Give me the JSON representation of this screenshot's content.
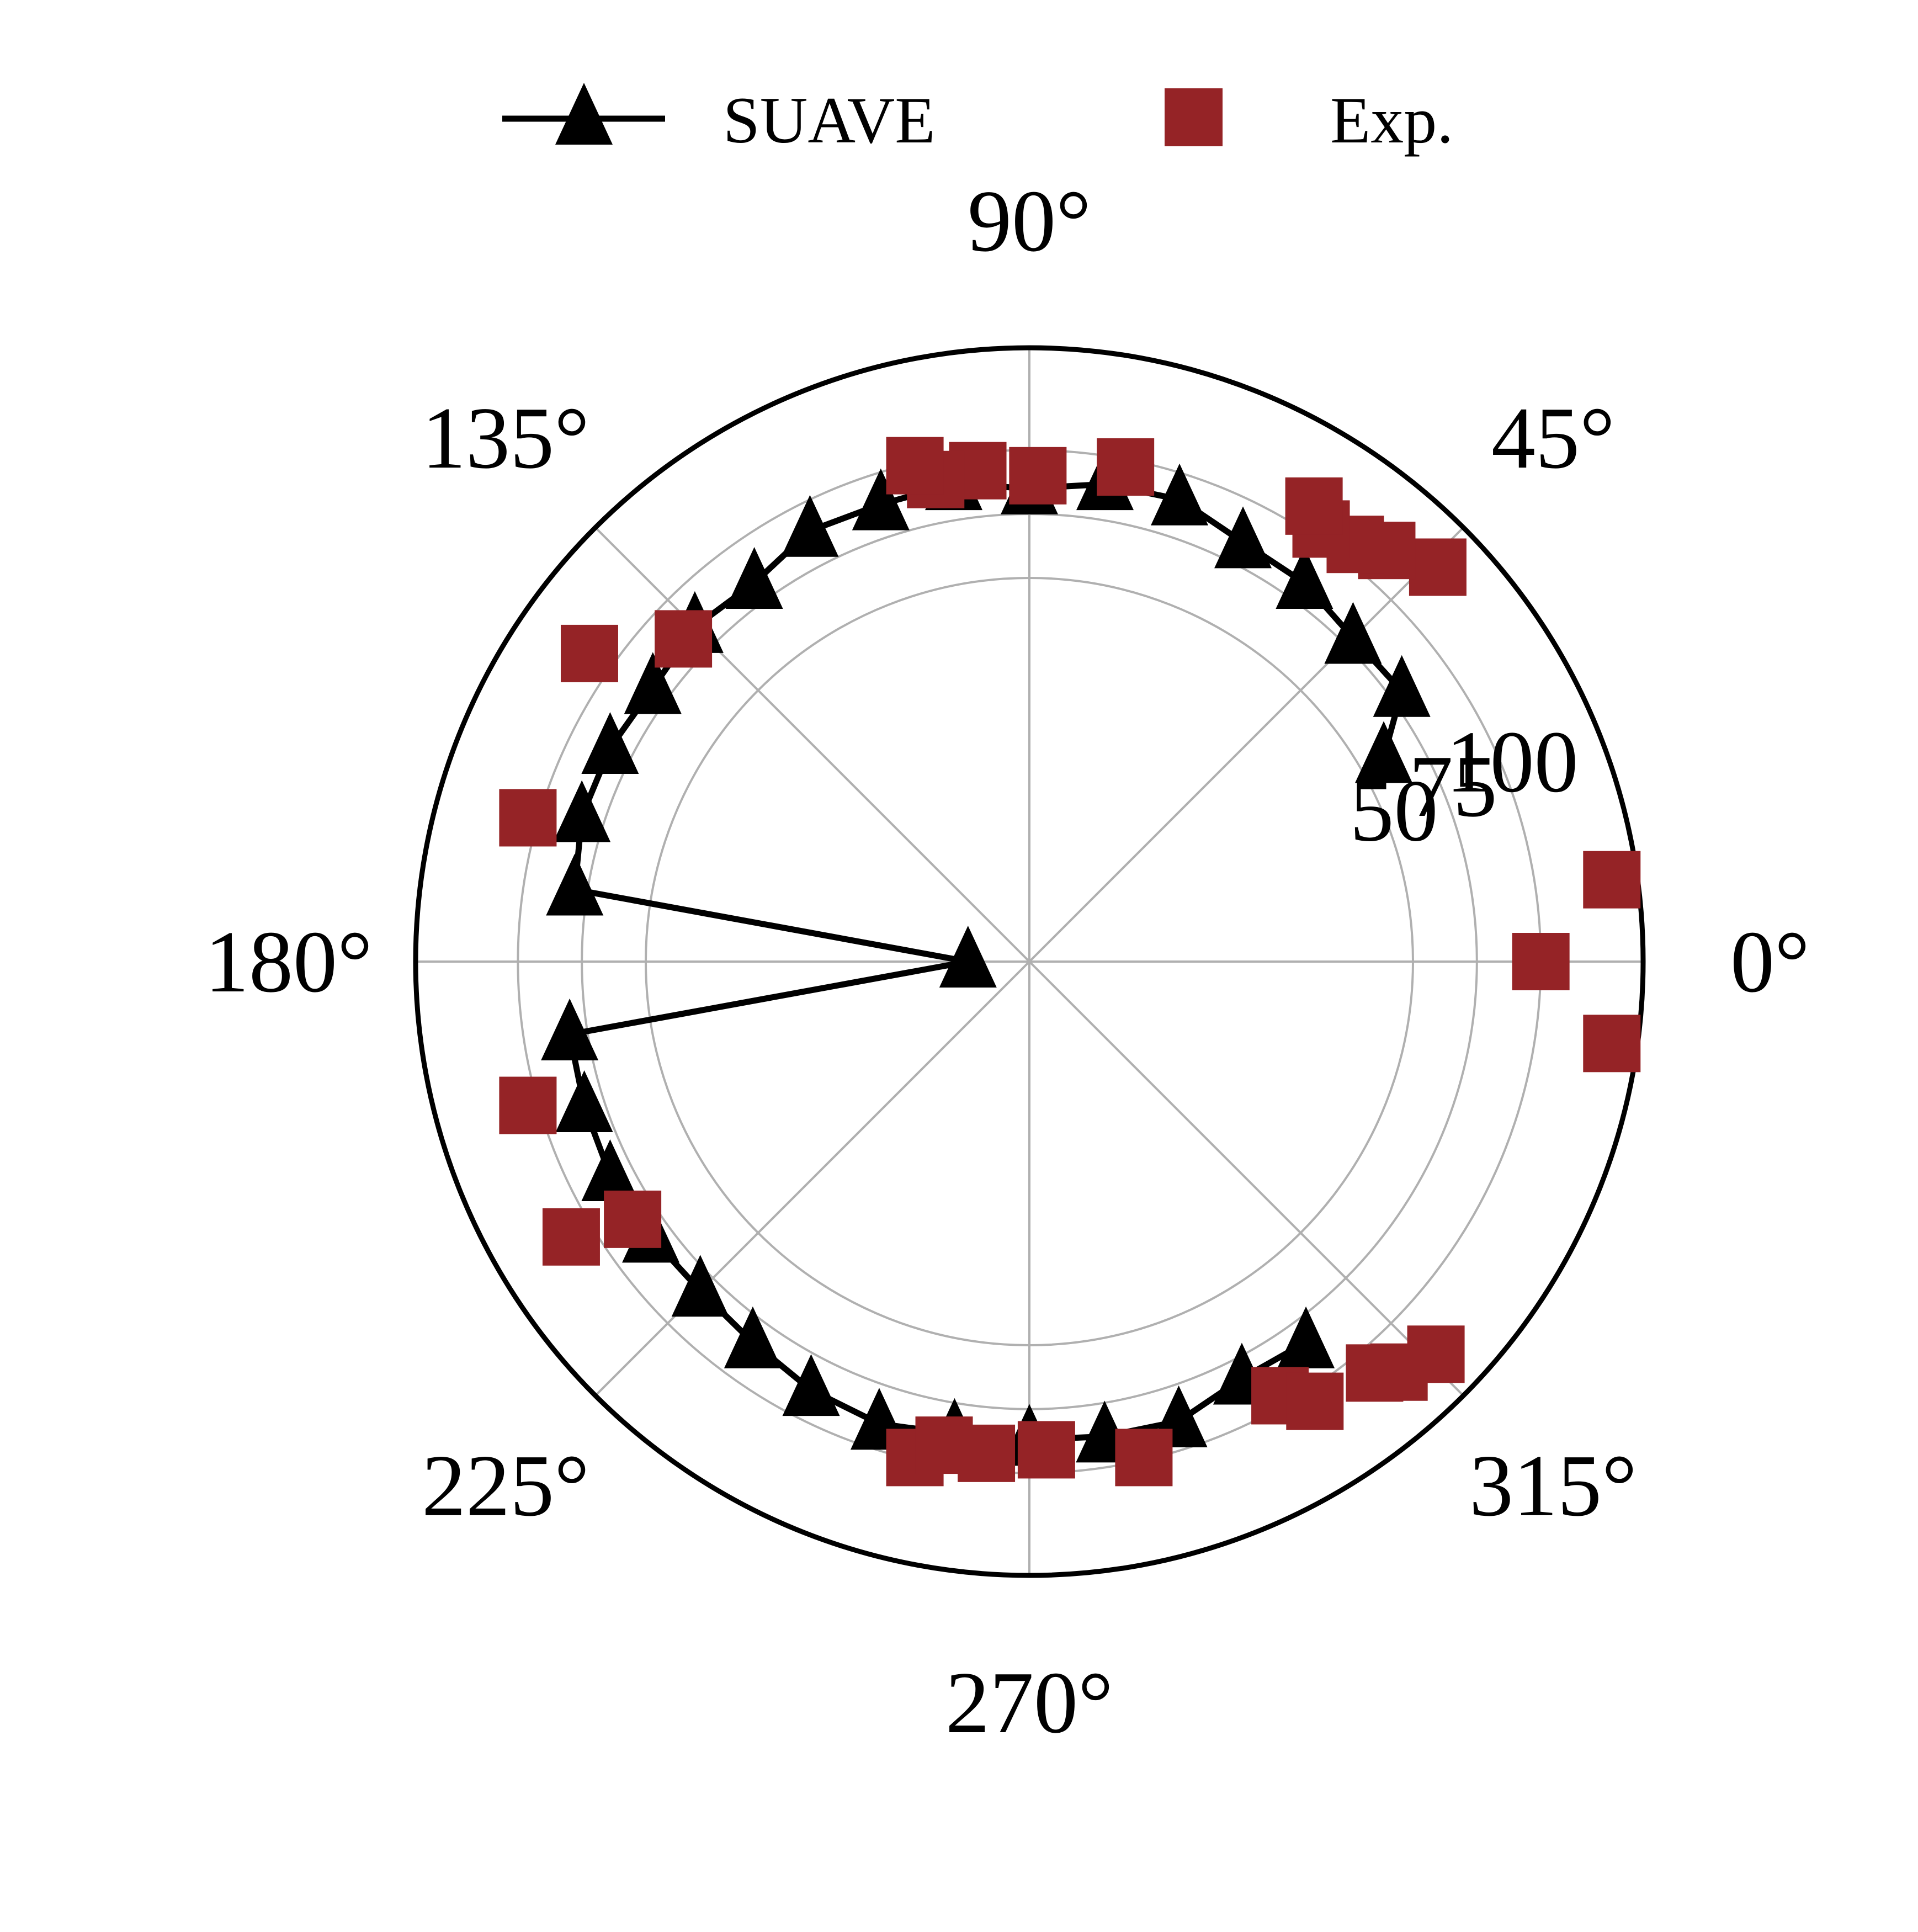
{
  "chart_data": {
    "type": "scatter",
    "projection": "polar",
    "theta_unit": "degrees",
    "rlim": [
      -100,
      140
    ],
    "r_ticks": [
      50,
      75,
      100
    ],
    "r_tick_labels": [
      "50",
      "75",
      "100"
    ],
    "theta_ticks": [
      0,
      45,
      90,
      135,
      180,
      225,
      270,
      315
    ],
    "theta_tick_labels": [
      "0°",
      "45°",
      "90°",
      "135°",
      "180°",
      "225°",
      "270°",
      "315°"
    ],
    "grid": true,
    "legend_position": "top",
    "series": [
      {
        "name": "SUAVE",
        "marker": "triangle",
        "line": true,
        "color": "#000000",
        "points": [
          {
            "theta": 30,
            "r": 60
          },
          {
            "theta": 36,
            "r": 80
          },
          {
            "theta": 45,
            "r": 79
          },
          {
            "theta": 54,
            "r": 83
          },
          {
            "theta": 63,
            "r": 84
          },
          {
            "theta": 72,
            "r": 90
          },
          {
            "theta": 81,
            "r": 89
          },
          {
            "theta": 90,
            "r": 85
          },
          {
            "theta": 99,
            "r": 89
          },
          {
            "theta": 108,
            "r": 88
          },
          {
            "theta": 117,
            "r": 89
          },
          {
            "theta": 126,
            "r": 83
          },
          {
            "theta": 135,
            "r": 85
          },
          {
            "theta": 144,
            "r": 82
          },
          {
            "theta": 153,
            "r": 84
          },
          {
            "theta": 162,
            "r": 84
          },
          {
            "theta": 171,
            "r": 80
          },
          {
            "theta": 180,
            "r": -76
          },
          {
            "theta": 189,
            "r": 82
          },
          {
            "theta": 198,
            "r": 83
          },
          {
            "theta": 207,
            "r": 84
          },
          {
            "theta": 216,
            "r": 83
          },
          {
            "theta": 225,
            "r": 82
          },
          {
            "theta": 234,
            "r": 84
          },
          {
            "theta": 243,
            "r": 88
          },
          {
            "theta": 252,
            "r": 90
          },
          {
            "theta": 261,
            "r": 87
          },
          {
            "theta": 270,
            "r": 87
          },
          {
            "theta": 279,
            "r": 88
          },
          {
            "theta": 288,
            "r": 89
          },
          {
            "theta": 297,
            "r": 83
          },
          {
            "theta": 306,
            "r": 84
          }
        ]
      },
      {
        "name": "Exp.",
        "marker": "square",
        "line": false,
        "color": "#952326",
        "points": [
          {
            "theta": 0,
            "r": 100
          },
          {
            "theta": 8,
            "r": 130
          },
          {
            "theta": 352,
            "r": 130
          },
          {
            "theta": 79,
            "r": 97
          },
          {
            "theta": 89,
            "r": 90
          },
          {
            "theta": 96,
            "r": 93
          },
          {
            "theta": 101,
            "r": 92
          },
          {
            "theta": 103,
            "r": 99
          },
          {
            "theta": 137,
            "r": 85
          },
          {
            "theta": 145,
            "r": 110
          },
          {
            "theta": 164,
            "r": 104
          },
          {
            "theta": 196,
            "r": 104
          },
          {
            "theta": 211,
            "r": 109
          },
          {
            "theta": 213,
            "r": 85
          },
          {
            "theta": 257,
            "r": 99
          },
          {
            "theta": 260,
            "r": 92
          },
          {
            "theta": 265,
            "r": 93
          },
          {
            "theta": 272,
            "r": 91
          },
          {
            "theta": 283,
            "r": 99
          },
          {
            "theta": 300,
            "r": 96
          },
          {
            "theta": 303,
            "r": 105
          },
          {
            "theta": 310,
            "r": 110
          },
          {
            "theta": 312,
            "r": 116
          },
          {
            "theta": 316,
            "r": 121
          },
          {
            "theta": 44,
            "r": 122
          },
          {
            "theta": 49,
            "r": 113
          },
          {
            "theta": 52,
            "r": 107
          },
          {
            "theta": 56,
            "r": 104
          },
          {
            "theta": 58,
            "r": 110
          }
        ]
      }
    ]
  }
}
